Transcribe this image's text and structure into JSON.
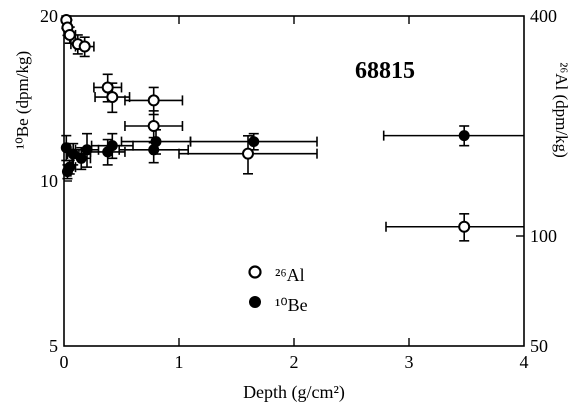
{
  "chart_data": {
    "type": "scatter",
    "title": "68815",
    "xlabel": "Depth (g/cm²)",
    "ylabel_left": "¹⁰Be (dpm/kg)",
    "ylabel_right": "²⁶Al (dpm/kg)",
    "xlim": [
      0,
      4
    ],
    "ylim_left": [
      5,
      20
    ],
    "ylim_right": [
      50,
      400
    ],
    "y_scale": "log",
    "grid": false,
    "legend_position": "bottom-center",
    "xticks": [
      "0",
      "1",
      "2",
      "3",
      "4"
    ],
    "yticks_left": [
      "5",
      "10",
      "20"
    ],
    "yticks_right": [
      "50",
      "100",
      "400"
    ],
    "series": [
      {
        "name": "²⁶Al",
        "marker": "open-circle",
        "axis": "right",
        "points": [
          {
            "x": 0.02,
            "y": 390,
            "xerr": 0.02,
            "yerr": 20
          },
          {
            "x": 0.03,
            "y": 372,
            "xerr": 0.03,
            "yerr": 18
          },
          {
            "x": 0.05,
            "y": 355,
            "xerr": 0.05,
            "yerr": 18
          },
          {
            "x": 0.12,
            "y": 335,
            "xerr": 0.06,
            "yerr": 20
          },
          {
            "x": 0.18,
            "y": 330,
            "xerr": 0.08,
            "yerr": 20
          },
          {
            "x": 0.38,
            "y": 255,
            "xerr": 0.12,
            "yerr": 22
          },
          {
            "x": 0.42,
            "y": 240,
            "xerr": 0.15,
            "yerr": 22
          },
          {
            "x": 0.78,
            "y": 235,
            "xerr": 0.25,
            "yerr": 20
          },
          {
            "x": 0.78,
            "y": 200,
            "xerr": 0.25,
            "yerr": 20
          },
          {
            "x": 1.6,
            "y": 168,
            "xerr": 0.6,
            "yerr": 20
          },
          {
            "x": 3.48,
            "y": 106,
            "xerr": 0.68,
            "yerr": 9
          }
        ]
      },
      {
        "name": "¹⁰Be",
        "marker": "filled-circle",
        "axis": "left",
        "points": [
          {
            "x": 0.02,
            "y": 11.5,
            "xerr": 0.02,
            "yerr": 0.6
          },
          {
            "x": 0.03,
            "y": 10.4,
            "xerr": 0.03,
            "yerr": 0.3
          },
          {
            "x": 0.05,
            "y": 10.6,
            "xerr": 0.05,
            "yerr": 0.3
          },
          {
            "x": 0.08,
            "y": 11.2,
            "xerr": 0.05,
            "yerr": 0.5
          },
          {
            "x": 0.15,
            "y": 11.0,
            "xerr": 0.08,
            "yerr": 0.5
          },
          {
            "x": 0.2,
            "y": 11.4,
            "xerr": 0.1,
            "yerr": 0.8
          },
          {
            "x": 0.38,
            "y": 11.3,
            "xerr": 0.15,
            "yerr": 0.6
          },
          {
            "x": 0.42,
            "y": 11.6,
            "xerr": 0.18,
            "yerr": 0.6
          },
          {
            "x": 0.78,
            "y": 11.4,
            "xerr": 0.3,
            "yerr": 0.6
          },
          {
            "x": 0.8,
            "y": 11.8,
            "xerr": 0.3,
            "yerr": 0.6
          },
          {
            "x": 1.65,
            "y": 11.8,
            "xerr": 0.55,
            "yerr": 0.4
          },
          {
            "x": 3.48,
            "y": 12.1,
            "xerr": 0.7,
            "yerr": 0.5
          }
        ]
      }
    ]
  }
}
